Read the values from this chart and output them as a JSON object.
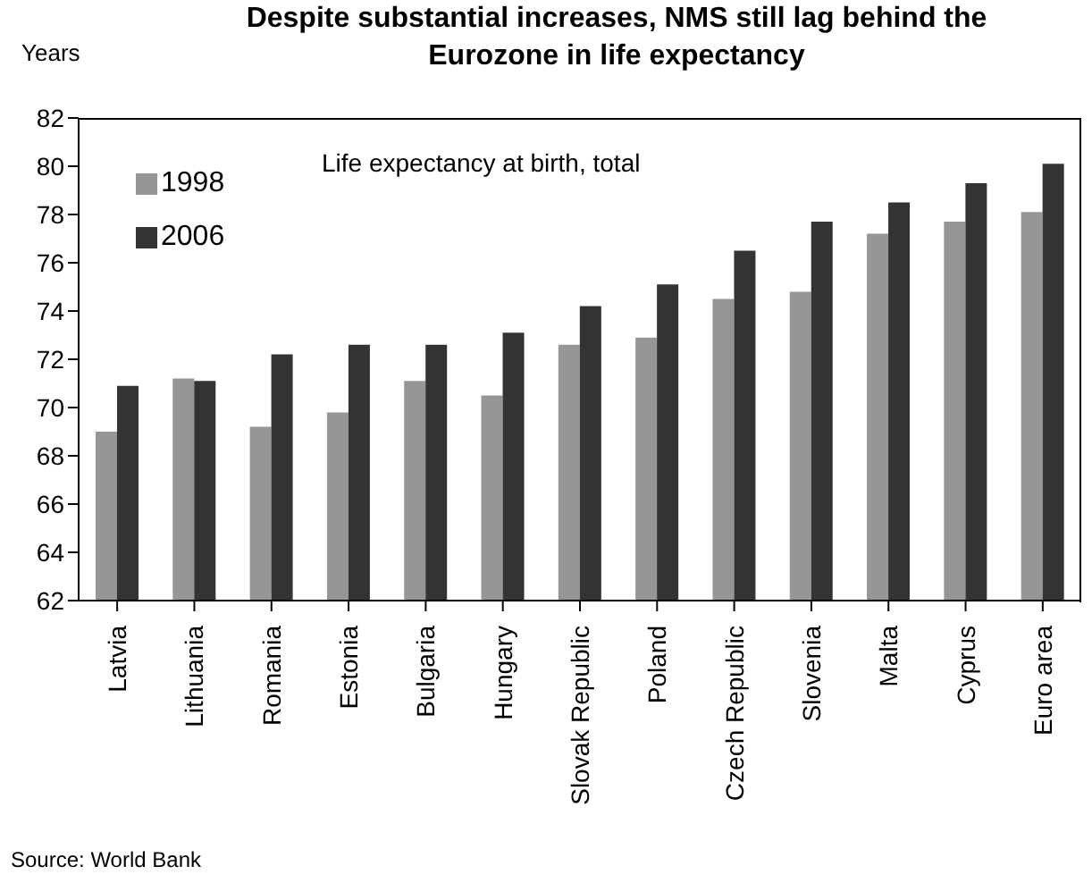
{
  "chart_data": {
    "type": "bar",
    "title": "Despite substantial increases, NMS still lag behind the Eurozone in life expectancy",
    "ylabel": "Years",
    "annotations": [
      "Life expectancy at birth, total",
      "Source: World Bank"
    ],
    "categories": [
      "Latvia",
      "Lithuania",
      "Romania",
      "Estonia",
      "Bulgaria",
      "Hungary",
      "Slovak Republic",
      "Poland",
      "Czech Republic",
      "Slovenia",
      "Malta",
      "Cyprus",
      "Euro area"
    ],
    "series": [
      {
        "name": "1998",
        "color": "#969696",
        "values": [
          69.0,
          71.2,
          69.2,
          69.8,
          71.1,
          70.5,
          72.6,
          72.9,
          74.5,
          74.8,
          77.2,
          77.7,
          78.1
        ]
      },
      {
        "name": "2006",
        "color": "#333333",
        "values": [
          70.9,
          71.1,
          72.2,
          72.6,
          72.6,
          73.1,
          74.2,
          75.1,
          76.5,
          77.7,
          78.5,
          79.3,
          80.1
        ]
      }
    ],
    "ylim": [
      62,
      82
    ],
    "yticks": [
      62,
      64,
      66,
      68,
      70,
      72,
      74,
      76,
      78,
      80,
      82
    ],
    "legend": "top left"
  }
}
